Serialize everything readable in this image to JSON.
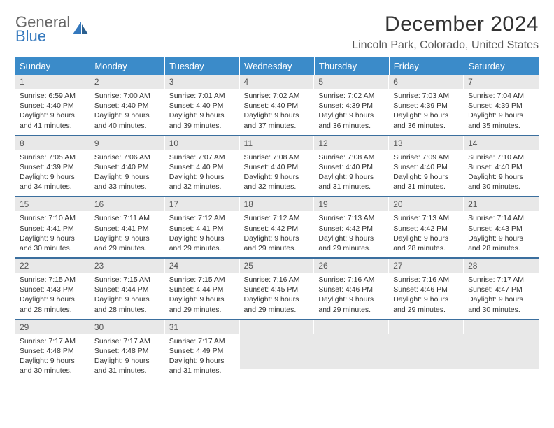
{
  "logo": {
    "general": "General",
    "blue": "Blue"
  },
  "title": "December 2024",
  "location": "Lincoln Park, Colorado, United States",
  "colors": {
    "header_bg": "#3b8bc9",
    "header_text": "#ffffff",
    "daynum_bg": "#e8e8e8",
    "border": "#3b6f9e",
    "logo_blue": "#3478bd"
  },
  "weekdays": [
    "Sunday",
    "Monday",
    "Tuesday",
    "Wednesday",
    "Thursday",
    "Friday",
    "Saturday"
  ],
  "days": [
    {
      "n": "1",
      "sr": "Sunrise: 6:59 AM",
      "ss": "Sunset: 4:40 PM",
      "dl": "Daylight: 9 hours and 41 minutes."
    },
    {
      "n": "2",
      "sr": "Sunrise: 7:00 AM",
      "ss": "Sunset: 4:40 PM",
      "dl": "Daylight: 9 hours and 40 minutes."
    },
    {
      "n": "3",
      "sr": "Sunrise: 7:01 AM",
      "ss": "Sunset: 4:40 PM",
      "dl": "Daylight: 9 hours and 39 minutes."
    },
    {
      "n": "4",
      "sr": "Sunrise: 7:02 AM",
      "ss": "Sunset: 4:40 PM",
      "dl": "Daylight: 9 hours and 37 minutes."
    },
    {
      "n": "5",
      "sr": "Sunrise: 7:02 AM",
      "ss": "Sunset: 4:39 PM",
      "dl": "Daylight: 9 hours and 36 minutes."
    },
    {
      "n": "6",
      "sr": "Sunrise: 7:03 AM",
      "ss": "Sunset: 4:39 PM",
      "dl": "Daylight: 9 hours and 36 minutes."
    },
    {
      "n": "7",
      "sr": "Sunrise: 7:04 AM",
      "ss": "Sunset: 4:39 PM",
      "dl": "Daylight: 9 hours and 35 minutes."
    },
    {
      "n": "8",
      "sr": "Sunrise: 7:05 AM",
      "ss": "Sunset: 4:39 PM",
      "dl": "Daylight: 9 hours and 34 minutes."
    },
    {
      "n": "9",
      "sr": "Sunrise: 7:06 AM",
      "ss": "Sunset: 4:40 PM",
      "dl": "Daylight: 9 hours and 33 minutes."
    },
    {
      "n": "10",
      "sr": "Sunrise: 7:07 AM",
      "ss": "Sunset: 4:40 PM",
      "dl": "Daylight: 9 hours and 32 minutes."
    },
    {
      "n": "11",
      "sr": "Sunrise: 7:08 AM",
      "ss": "Sunset: 4:40 PM",
      "dl": "Daylight: 9 hours and 32 minutes."
    },
    {
      "n": "12",
      "sr": "Sunrise: 7:08 AM",
      "ss": "Sunset: 4:40 PM",
      "dl": "Daylight: 9 hours and 31 minutes."
    },
    {
      "n": "13",
      "sr": "Sunrise: 7:09 AM",
      "ss": "Sunset: 4:40 PM",
      "dl": "Daylight: 9 hours and 31 minutes."
    },
    {
      "n": "14",
      "sr": "Sunrise: 7:10 AM",
      "ss": "Sunset: 4:40 PM",
      "dl": "Daylight: 9 hours and 30 minutes."
    },
    {
      "n": "15",
      "sr": "Sunrise: 7:10 AM",
      "ss": "Sunset: 4:41 PM",
      "dl": "Daylight: 9 hours and 30 minutes."
    },
    {
      "n": "16",
      "sr": "Sunrise: 7:11 AM",
      "ss": "Sunset: 4:41 PM",
      "dl": "Daylight: 9 hours and 29 minutes."
    },
    {
      "n": "17",
      "sr": "Sunrise: 7:12 AM",
      "ss": "Sunset: 4:41 PM",
      "dl": "Daylight: 9 hours and 29 minutes."
    },
    {
      "n": "18",
      "sr": "Sunrise: 7:12 AM",
      "ss": "Sunset: 4:42 PM",
      "dl": "Daylight: 9 hours and 29 minutes."
    },
    {
      "n": "19",
      "sr": "Sunrise: 7:13 AM",
      "ss": "Sunset: 4:42 PM",
      "dl": "Daylight: 9 hours and 29 minutes."
    },
    {
      "n": "20",
      "sr": "Sunrise: 7:13 AM",
      "ss": "Sunset: 4:42 PM",
      "dl": "Daylight: 9 hours and 28 minutes."
    },
    {
      "n": "21",
      "sr": "Sunrise: 7:14 AM",
      "ss": "Sunset: 4:43 PM",
      "dl": "Daylight: 9 hours and 28 minutes."
    },
    {
      "n": "22",
      "sr": "Sunrise: 7:15 AM",
      "ss": "Sunset: 4:43 PM",
      "dl": "Daylight: 9 hours and 28 minutes."
    },
    {
      "n": "23",
      "sr": "Sunrise: 7:15 AM",
      "ss": "Sunset: 4:44 PM",
      "dl": "Daylight: 9 hours and 28 minutes."
    },
    {
      "n": "24",
      "sr": "Sunrise: 7:15 AM",
      "ss": "Sunset: 4:44 PM",
      "dl": "Daylight: 9 hours and 29 minutes."
    },
    {
      "n": "25",
      "sr": "Sunrise: 7:16 AM",
      "ss": "Sunset: 4:45 PM",
      "dl": "Daylight: 9 hours and 29 minutes."
    },
    {
      "n": "26",
      "sr": "Sunrise: 7:16 AM",
      "ss": "Sunset: 4:46 PM",
      "dl": "Daylight: 9 hours and 29 minutes."
    },
    {
      "n": "27",
      "sr": "Sunrise: 7:16 AM",
      "ss": "Sunset: 4:46 PM",
      "dl": "Daylight: 9 hours and 29 minutes."
    },
    {
      "n": "28",
      "sr": "Sunrise: 7:17 AM",
      "ss": "Sunset: 4:47 PM",
      "dl": "Daylight: 9 hours and 30 minutes."
    },
    {
      "n": "29",
      "sr": "Sunrise: 7:17 AM",
      "ss": "Sunset: 4:48 PM",
      "dl": "Daylight: 9 hours and 30 minutes."
    },
    {
      "n": "30",
      "sr": "Sunrise: 7:17 AM",
      "ss": "Sunset: 4:48 PM",
      "dl": "Daylight: 9 hours and 31 minutes."
    },
    {
      "n": "31",
      "sr": "Sunrise: 7:17 AM",
      "ss": "Sunset: 4:49 PM",
      "dl": "Daylight: 9 hours and 31 minutes."
    }
  ]
}
